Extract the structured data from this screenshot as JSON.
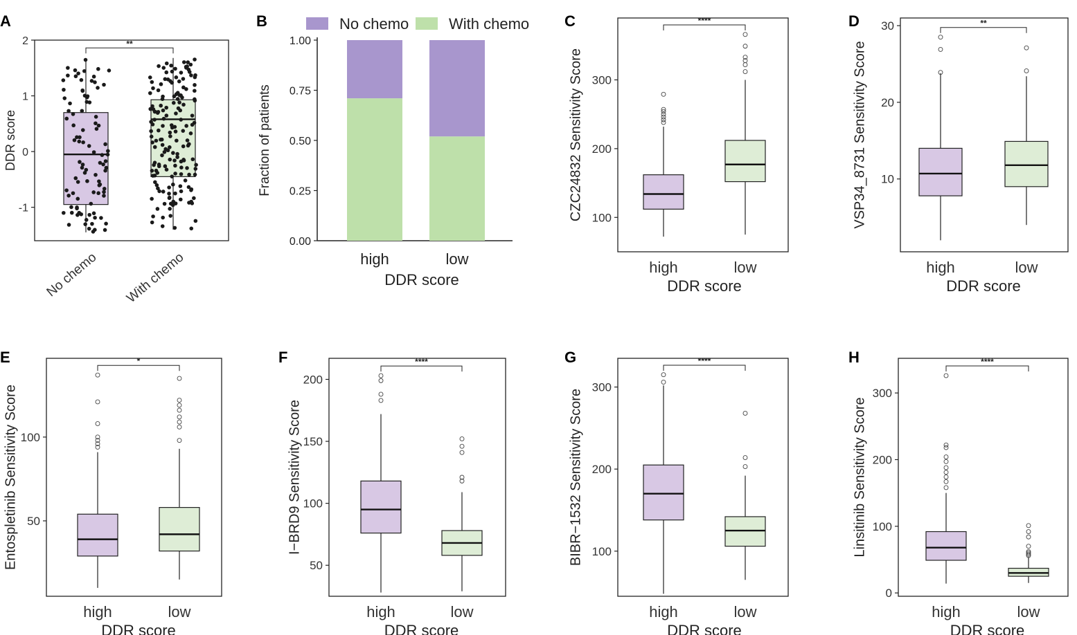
{
  "colors": {
    "high_fill": "#d8c8e4",
    "low_fill": "#deedd6",
    "no_chemo": "#a896cd",
    "with_chemo": "#bee0aa",
    "ink": "#222222",
    "dot": "#1a1a1a"
  },
  "chart_data": [
    {
      "panel": "A",
      "type": "box",
      "ylabel": "DDR score",
      "xlabel": "",
      "ylim": [
        -1.6,
        2.0
      ],
      "yticks": [
        -1,
        0,
        1,
        2
      ],
      "categories": [
        "No chemo",
        "With chemo"
      ],
      "boxes": [
        {
          "q1": -0.95,
          "median": -0.05,
          "q3": 0.7,
          "wlo": -1.45,
          "whi": 1.65,
          "outliers": []
        },
        {
          "q1": -0.45,
          "median": 0.58,
          "q3": 0.93,
          "wlo": -1.4,
          "whi": 1.68,
          "outliers": []
        }
      ],
      "jitter_counts": [
        95,
        170
      ],
      "significance": "**",
      "fill_keys": [
        "high_fill",
        "low_fill"
      ]
    },
    {
      "panel": "B",
      "type": "stacked_bar",
      "ylabel": "Fraction of patients",
      "xlabel": "DDR score",
      "ylim": [
        0,
        1
      ],
      "yticks": [
        "0.00",
        "0.25",
        "0.50",
        "0.75",
        "1.00"
      ],
      "categories": [
        "high",
        "low"
      ],
      "series": [
        {
          "name": "With chemo",
          "values": [
            0.71,
            0.52
          ],
          "color_key": "with_chemo"
        },
        {
          "name": "No chemo",
          "values": [
            0.29,
            0.48
          ],
          "color_key": "no_chemo"
        }
      ],
      "legend": [
        {
          "name": "No chemo",
          "color_key": "no_chemo"
        },
        {
          "name": "With chemo",
          "color_key": "with_chemo"
        }
      ]
    },
    {
      "panel": "C",
      "type": "box",
      "ylabel": "CZC24832 Sensitivity Score",
      "xlabel": "DDR score",
      "ylim": [
        50,
        390
      ],
      "yticks": [
        100,
        200,
        300
      ],
      "categories": [
        "high",
        "low"
      ],
      "boxes": [
        {
          "q1": 112,
          "median": 134,
          "q3": 162,
          "wlo": 72,
          "whi": 232,
          "outliers": [
            238,
            242,
            246,
            250,
            254,
            257,
            279
          ]
        },
        {
          "q1": 152,
          "median": 177,
          "q3": 212,
          "wlo": 75,
          "whi": 300,
          "outliers": [
            312,
            322,
            328,
            333,
            349,
            366
          ]
        }
      ],
      "significance": "****",
      "fill_keys": [
        "high_fill",
        "low_fill"
      ]
    },
    {
      "panel": "D",
      "type": "box",
      "ylabel": "VSP34_8731 Sensitivity Score",
      "xlabel": "DDR score",
      "ylim": [
        0.5,
        31
      ],
      "yticks": [
        10,
        20,
        30
      ],
      "categories": [
        "high",
        "low"
      ],
      "boxes": [
        {
          "q1": 7.8,
          "median": 10.7,
          "q3": 14.0,
          "wlo": 2.0,
          "whi": 23.8,
          "outliers": [
            23.9,
            26.9,
            28.5
          ]
        },
        {
          "q1": 9.0,
          "median": 11.8,
          "q3": 14.9,
          "wlo": 4.0,
          "whi": 23.4,
          "outliers": [
            24.1,
            27.1
          ]
        }
      ],
      "significance": "**",
      "fill_keys": [
        "high_fill",
        "low_fill"
      ]
    },
    {
      "panel": "E",
      "type": "box",
      "ylabel": "Entospletinib Sensitivity Score",
      "xlabel": "DDR score",
      "ylim": [
        5,
        147
      ],
      "yticks": [
        50,
        100
      ],
      "categories": [
        "high",
        "low"
      ],
      "boxes": [
        {
          "q1": 29,
          "median": 39,
          "q3": 54,
          "wlo": 10,
          "whi": 91,
          "outliers": [
            94,
            96,
            98,
            100,
            108,
            121,
            137
          ]
        },
        {
          "q1": 32,
          "median": 42,
          "q3": 58,
          "wlo": 15,
          "whi": 93,
          "outliers": [
            98,
            106,
            109,
            112,
            116,
            119,
            122,
            135
          ]
        }
      ],
      "significance": "*",
      "fill_keys": [
        "high_fill",
        "low_fill"
      ]
    },
    {
      "panel": "F",
      "type": "box",
      "ylabel": "I−BRD9 Sensitivity Score",
      "xlabel": "DDR score",
      "ylim": [
        25,
        217
      ],
      "yticks": [
        50,
        100,
        150,
        200
      ],
      "categories": [
        "high",
        "low"
      ],
      "boxes": [
        {
          "q1": 76,
          "median": 95,
          "q3": 118,
          "wlo": 28,
          "whi": 172,
          "outliers": [
            183,
            188,
            199,
            203
          ]
        },
        {
          "q1": 58,
          "median": 68,
          "q3": 78,
          "wlo": 29,
          "whi": 109,
          "outliers": [
            118,
            121,
            141,
            146,
            152
          ]
        }
      ],
      "significance": "****",
      "fill_keys": [
        "high_fill",
        "low_fill"
      ]
    },
    {
      "panel": "G",
      "type": "box",
      "ylabel": "BIBR−1532 Sensitivity Score",
      "xlabel": "DDR score",
      "ylim": [
        45,
        335
      ],
      "yticks": [
        100,
        200,
        300
      ],
      "categories": [
        "high",
        "low"
      ],
      "boxes": [
        {
          "q1": 138,
          "median": 170,
          "q3": 205,
          "wlo": 48,
          "whi": 302,
          "outliers": [
            306,
            315
          ]
        },
        {
          "q1": 106,
          "median": 125,
          "q3": 142,
          "wlo": 65,
          "whi": 192,
          "outliers": [
            203,
            214,
            268
          ]
        }
      ],
      "significance": "****",
      "fill_keys": [
        "high_fill",
        "low_fill"
      ]
    },
    {
      "panel": "H",
      "type": "box",
      "ylabel": "Linsitinib Sensitivity Score",
      "xlabel": "DDR score",
      "ylim": [
        -5,
        352
      ],
      "yticks": [
        0,
        100,
        200,
        300
      ],
      "categories": [
        "high",
        "low"
      ],
      "boxes": [
        {
          "q1": 49,
          "median": 68,
          "q3": 92,
          "wlo": 14,
          "whi": 150,
          "outliers": [
            158,
            167,
            174,
            181,
            188,
            197,
            204,
            218,
            222,
            326
          ]
        },
        {
          "q1": 25,
          "median": 30,
          "q3": 37,
          "wlo": 15,
          "whi": 54,
          "outliers": [
            56,
            58,
            60,
            62,
            70,
            84,
            92,
            101
          ]
        }
      ],
      "significance": "****",
      "fill_keys": [
        "high_fill",
        "low_fill"
      ]
    }
  ]
}
